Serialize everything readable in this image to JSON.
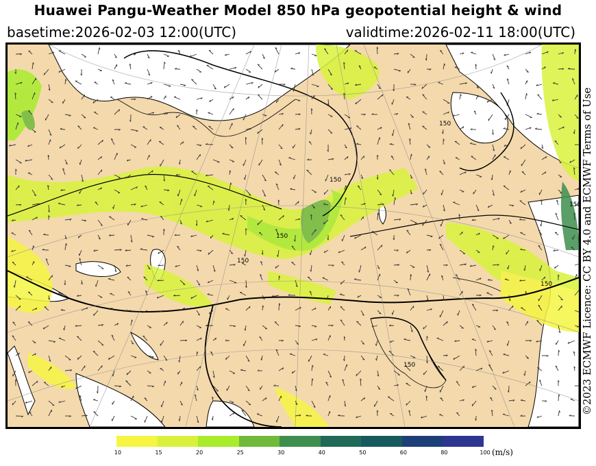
{
  "header": {
    "title": "Huawei Pangu-Weather Model 850 hPa geopotential height & wind",
    "basetime": "basetime:2026-02-03 12:00(UTC)",
    "validtime": "validtime:2026-02-11 18:00(UTC)"
  },
  "credit": "©2023 ECMWF Licence: CC BY 4.0 and ECMWF Terms of Use",
  "map": {
    "land_color": "#f4d9ad",
    "ocean_color": "#ffffff",
    "contour_labels": [
      "150",
      "150",
      "150",
      "150",
      "150",
      "150",
      "150"
    ]
  },
  "colorbar": {
    "ticks": [
      "10",
      "15",
      "20",
      "25",
      "30",
      "40",
      "50",
      "60",
      "80",
      "100"
    ],
    "colors": [
      "#f5f542",
      "#d8f23c",
      "#a8ec2c",
      "#6fba3a",
      "#3e8f4e",
      "#1f6b58",
      "#165a5e",
      "#1d3f78",
      "#2d3591"
    ],
    "unit": "(m/s)"
  }
}
